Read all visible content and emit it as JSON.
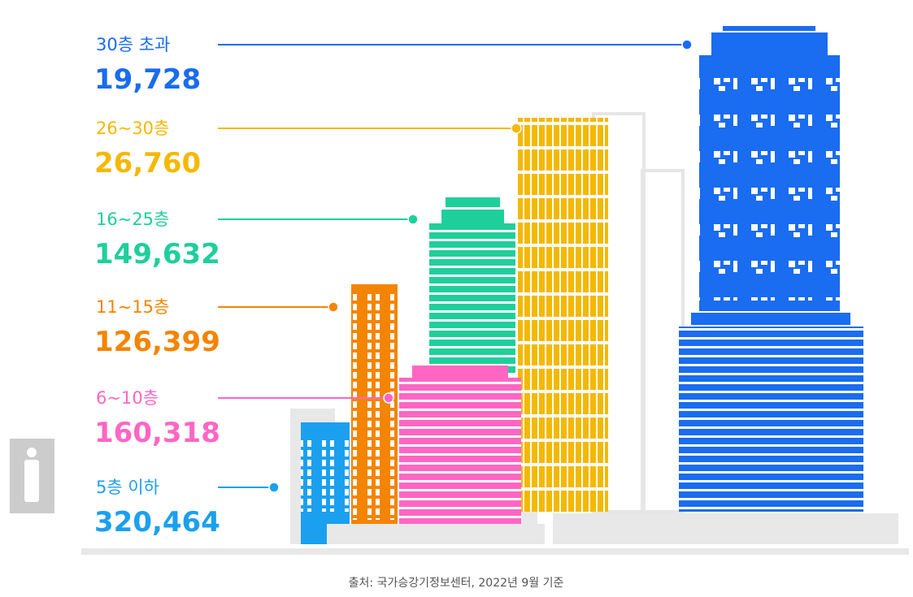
{
  "chart_data": {
    "type": "pictorial",
    "categories": [
      "30층 초과",
      "26~30층",
      "16~25층",
      "11~15층",
      "6~10층",
      "5층 이하"
    ],
    "values": [
      19728,
      26760,
      149632,
      126399,
      160318,
      320464
    ],
    "value_labels": [
      "19,728",
      "26,760",
      "149,632",
      "126,399",
      "160,318",
      "320,464"
    ],
    "colors": [
      "#1a6cf0",
      "#f5b800",
      "#1fcf9b",
      "#f58400",
      "#ff66c4",
      "#1ba0ef"
    ],
    "source": "출처: 국가승강기정보센터, 2022년 9월 기준"
  }
}
